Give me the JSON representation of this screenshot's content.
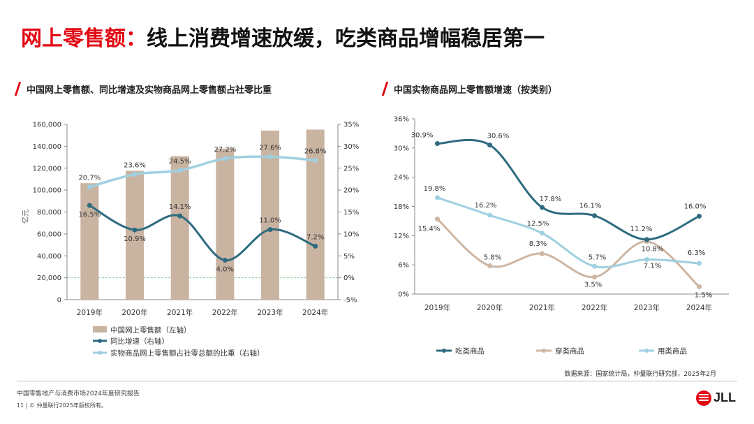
{
  "page": {
    "title_red": "网上零售额：",
    "title_black": "线上消费增速放缓，吃类商品增幅稳居第一",
    "source": "数据来源：国家统计局，仲量联行研究部，2025年2月",
    "footer_report": "中国零售地产与消费市场2024年度研究报告",
    "footer_copyright": "11 | © 仲量联行2025年版权所有。",
    "logo_text": "JLL",
    "accent_color": "#e30613"
  },
  "chart_data": [
    {
      "type": "bar",
      "title": "中国网上零售额、同比增速及实物商品网上零售额占社零比重",
      "categories": [
        "2019年",
        "2020年",
        "2021年",
        "2022年",
        "2023年",
        "2024年"
      ],
      "ylabel": "亿元",
      "ylim": [
        0,
        160000
      ],
      "y_ticks": [
        0,
        20000,
        40000,
        60000,
        80000,
        100000,
        120000,
        140000,
        160000
      ],
      "y_tick_labels": [
        "0",
        "20,000",
        "40,000",
        "60,000",
        "80,000",
        "100,000",
        "120,000",
        "140,000",
        "160,000"
      ],
      "y2lim": [
        -5,
        35
      ],
      "y2_ticks": [
        -5,
        0,
        5,
        10,
        15,
        20,
        25,
        30,
        35
      ],
      "y2_tick_labels": [
        "-5%",
        "0%",
        "5%",
        "10%",
        "15%",
        "20%",
        "25%",
        "30%",
        "35%"
      ],
      "legend_position": "bottom",
      "series": [
        {
          "name": "中国网上零售额（左轴）",
          "type": "bar",
          "axis": "left",
          "color": "#c9b3a1",
          "values": [
            106300,
            117600,
            130900,
            137900,
            154300,
            155200
          ]
        },
        {
          "name": "同比增速（右轴）",
          "type": "line",
          "axis": "right",
          "color": "#2e6b80",
          "values": [
            16.5,
            10.9,
            14.1,
            4.0,
            11.0,
            7.2
          ],
          "labels": [
            "16.5%",
            "10.9%",
            "14.1%",
            "4.0%",
            "11.0%",
            "7.2%"
          ]
        },
        {
          "name": "实物商品网上零售额占社零总额的比重（右轴）",
          "type": "line",
          "axis": "right",
          "color": "#9fd0e0",
          "values": [
            20.7,
            23.6,
            24.5,
            27.2,
            27.6,
            26.8
          ],
          "labels": [
            "20.7%",
            "23.6%",
            "24.5%",
            "27.2%",
            "27.6%",
            "26.8%"
          ]
        }
      ]
    },
    {
      "type": "line",
      "title": "中国实物商品网上零售额增速（按类别）",
      "categories": [
        "2019年",
        "2020年",
        "2021年",
        "2022年",
        "2023年",
        "2024年"
      ],
      "ylim": [
        0,
        36
      ],
      "y_ticks": [
        0,
        6,
        12,
        18,
        24,
        30,
        36
      ],
      "y_tick_labels": [
        "0%",
        "6%",
        "12%",
        "18%",
        "24%",
        "30%",
        "36%"
      ],
      "legend_position": "bottom",
      "series": [
        {
          "name": "吃类商品",
          "color": "#2e6b80",
          "values": [
            30.9,
            30.6,
            17.8,
            16.1,
            11.2,
            16.0
          ],
          "labels": [
            "30.9%",
            "30.6%",
            "17.8%",
            "16.1%",
            "11.2%",
            "16.0%"
          ]
        },
        {
          "name": "穿类商品",
          "color": "#cdb6a4",
          "values": [
            15.4,
            5.8,
            8.3,
            3.5,
            10.8,
            1.5
          ],
          "labels": [
            "15.4%",
            "5.8%",
            "8.3%",
            "3.5%",
            "10.8%",
            "1.5%"
          ]
        },
        {
          "name": "用类商品",
          "color": "#9fd0e0",
          "values": [
            19.8,
            16.2,
            12.5,
            5.7,
            7.1,
            6.3
          ],
          "labels": [
            "19.8%",
            "16.2%",
            "12.5%",
            "5.7%",
            "7.1%",
            "6.3%"
          ]
        }
      ]
    }
  ]
}
